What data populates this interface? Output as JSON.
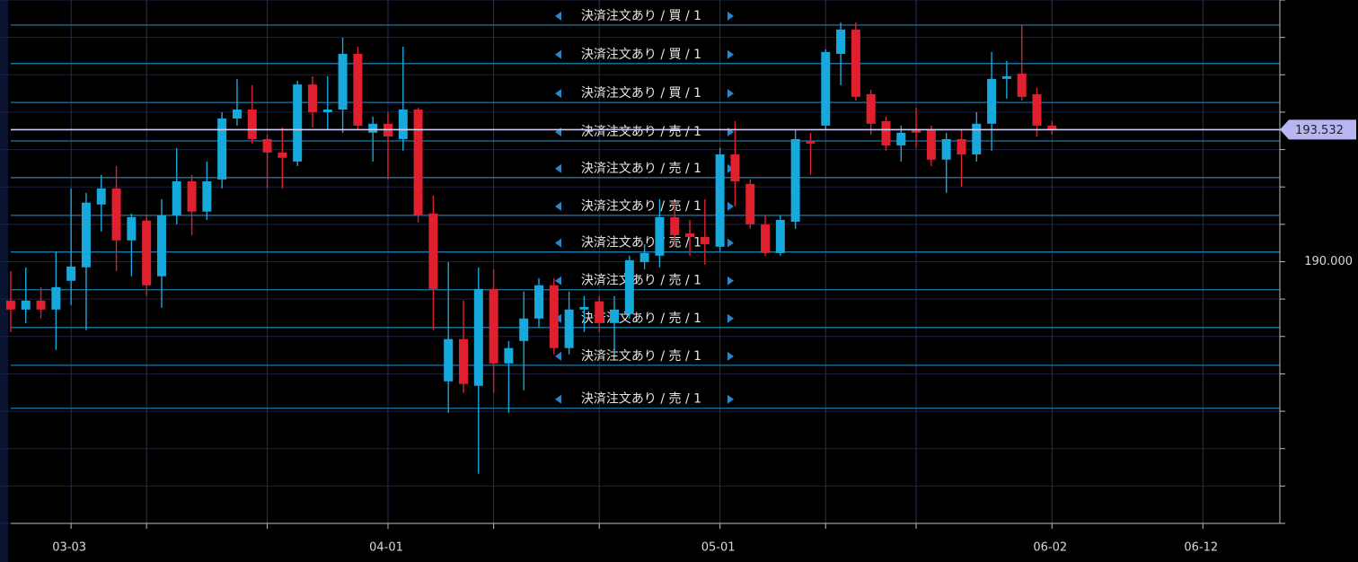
{
  "chart_data": {
    "type": "candlestick",
    "x": [
      0,
      1,
      2,
      3,
      4,
      5,
      6,
      7,
      8,
      9,
      10,
      11,
      12,
      13,
      14,
      15,
      16,
      17,
      18,
      19,
      20,
      21,
      22,
      23,
      24,
      25,
      26,
      27,
      28,
      29,
      30,
      31,
      32,
      33,
      34,
      35,
      36,
      37,
      38,
      39,
      40,
      41,
      42,
      43,
      44,
      45,
      46,
      47,
      48,
      49,
      50,
      51,
      52,
      53,
      54,
      55,
      56,
      57,
      58,
      59,
      60,
      61,
      62,
      63,
      64,
      65,
      66,
      67,
      68,
      69
    ],
    "open": [
      188.96,
      188.72,
      188.96,
      188.72,
      189.49,
      189.85,
      191.53,
      191.96,
      190.57,
      191.1,
      189.61,
      191.24,
      192.15,
      191.34,
      192.2,
      193.83,
      194.07,
      193.28,
      192.92,
      192.68,
      194.74,
      194.0,
      194.07,
      195.56,
      193.45,
      193.69,
      193.28,
      194.07,
      191.29,
      186.8,
      187.93,
      186.68,
      189.27,
      187.28,
      187.88,
      188.48,
      189.37,
      187.69,
      188.72,
      188.94,
      188.36,
      188.6,
      189.99,
      190.16,
      191.19,
      190.76,
      190.66,
      190.4,
      192.87,
      192.08,
      191.0,
      190.23,
      191.07,
      193.23,
      193.64,
      195.56,
      196.21,
      194.48,
      193.76,
      193.11,
      193.52,
      193.52,
      192.73,
      193.28,
      192.87,
      193.69,
      194.89,
      195.03,
      194.48,
      193.64
    ],
    "high": [
      189.75,
      189.85,
      189.32,
      190.28,
      191.96,
      191.84,
      192.32,
      192.56,
      191.29,
      191.24,
      191.67,
      193.04,
      192.32,
      192.68,
      194.0,
      194.89,
      194.72,
      193.4,
      193.59,
      194.84,
      194.96,
      194.96,
      195.99,
      195.75,
      193.88,
      194.0,
      195.75,
      194.12,
      191.77,
      189.99,
      188.96,
      189.85,
      189.8,
      187.88,
      189.2,
      189.56,
      189.56,
      189.2,
      189.08,
      189.08,
      189.08,
      190.16,
      190.47,
      191.67,
      191.6,
      191.12,
      191.67,
      193.04,
      193.76,
      192.2,
      191.24,
      191.24,
      193.52,
      193.45,
      195.68,
      196.4,
      196.4,
      194.6,
      193.88,
      193.64,
      194.12,
      193.64,
      193.45,
      193.52,
      194.0,
      195.61,
      195.37,
      196.33,
      194.65,
      193.76
    ],
    "low": [
      188.12,
      188.36,
      188.48,
      187.64,
      188.84,
      188.17,
      190.81,
      189.75,
      189.61,
      189.08,
      188.77,
      191.0,
      190.71,
      191.12,
      191.96,
      193.64,
      193.16,
      191.96,
      191.96,
      192.56,
      193.59,
      193.52,
      193.45,
      193.52,
      192.68,
      192.2,
      192.97,
      191.05,
      188.17,
      185.96,
      186.49,
      184.33,
      186.49,
      185.96,
      186.56,
      188.24,
      187.52,
      187.52,
      188.12,
      188.12,
      187.52,
      188.48,
      189.8,
      189.85,
      190.4,
      190.16,
      189.92,
      190.28,
      191.48,
      190.88,
      190.16,
      190.16,
      190.88,
      192.32,
      193.52,
      194.72,
      194.31,
      193.4,
      192.97,
      192.68,
      193.04,
      192.56,
      191.84,
      192.01,
      192.68,
      192.97,
      194.36,
      194.31,
      193.35,
      193.4
    ],
    "close": [
      188.72,
      188.96,
      188.72,
      189.32,
      189.87,
      191.58,
      191.96,
      190.57,
      191.19,
      189.37,
      191.24,
      192.15,
      191.34,
      192.15,
      193.83,
      194.07,
      193.28,
      192.92,
      192.78,
      194.74,
      194.0,
      194.07,
      195.56,
      193.64,
      193.69,
      193.35,
      194.07,
      191.24,
      189.27,
      187.93,
      186.73,
      189.27,
      187.28,
      187.69,
      188.48,
      189.37,
      187.69,
      188.72,
      188.79,
      188.36,
      188.72,
      190.04,
      190.23,
      191.19,
      190.71,
      190.66,
      190.47,
      192.87,
      192.15,
      191.0,
      190.23,
      191.12,
      193.28,
      193.16,
      195.61,
      196.21,
      194.41,
      193.69,
      193.11,
      193.45,
      193.45,
      192.73,
      193.28,
      192.87,
      193.69,
      194.89,
      194.96,
      194.41,
      193.64,
      193.52
    ],
    "up_color": "#17a8dc",
    "down_color": "#e0202f",
    "xlim": [
      -0.71,
      84.1
    ],
    "xticks": [
      {
        "value": 4,
        "label": "03-03"
      },
      {
        "value": 9,
        "label": null
      },
      {
        "value": 17,
        "label": null
      },
      {
        "value": 25,
        "label": "04-01"
      },
      {
        "value": 32,
        "label": null
      },
      {
        "value": 39,
        "label": null
      },
      {
        "value": 47,
        "label": "05-01"
      },
      {
        "value": 54,
        "label": null
      },
      {
        "value": 60,
        "label": null
      },
      {
        "value": 69,
        "label": "06-02"
      },
      {
        "value": 79,
        "label": "06-12"
      }
    ],
    "ylim": [
      183,
      197
    ],
    "yticks": [
      {
        "value": 183,
        "label": null
      },
      {
        "value": 184,
        "label": null
      },
      {
        "value": 185,
        "label": null
      },
      {
        "value": 186,
        "label": null
      },
      {
        "value": 187,
        "label": null
      },
      {
        "value": 188,
        "label": null
      },
      {
        "value": 189,
        "label": null
      },
      {
        "value": 190,
        "label": "190.000"
      },
      {
        "value": 191,
        "label": null
      },
      {
        "value": 192,
        "label": null
      },
      {
        "value": 193,
        "label": null
      },
      {
        "value": 194,
        "label": null
      },
      {
        "value": 195,
        "label": null
      },
      {
        "value": 196,
        "label": null
      },
      {
        "value": 197,
        "label": null
      }
    ],
    "grid": true,
    "last_price": 193.532,
    "orders": [
      {
        "text": "決済注文あり / 買 / 1",
        "price": 196.33
      },
      {
        "text": "決済注文あり / 買 / 1",
        "price": 195.3
      },
      {
        "text": "決済注文あり / 買 / 1",
        "price": 194.26
      },
      {
        "text": "決済注文あり / 売 / 1",
        "price": 193.23
      },
      {
        "text": "決済注文あり / 売 / 1",
        "price": 192.25
      },
      {
        "text": "決済注文あり / 売 / 1",
        "price": 191.24
      },
      {
        "text": "決済注文あり / 売 / 1",
        "price": 190.26
      },
      {
        "text": "決済注文あり / 売 / 1",
        "price": 189.25
      },
      {
        "text": "決済注文あり / 売 / 1",
        "price": 188.24
      },
      {
        "text": "決済注文あり / 売 / 1",
        "price": 187.23
      },
      {
        "text": "決済注文あり / 売 / 1",
        "price": 186.08
      }
    ]
  }
}
